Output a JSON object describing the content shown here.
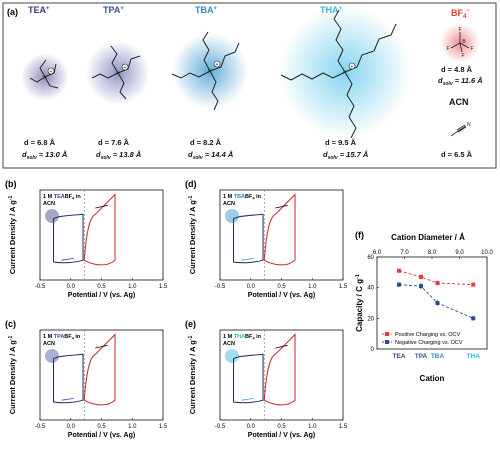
{
  "panel_a": {
    "label": "(a)",
    "cations": [
      {
        "name": "TEA",
        "charge": "+",
        "d": "d = 6.8 Å",
        "dsolv_label": "d",
        "dsolv_sub": "solv",
        "dsolv_value": " = 13.0 Å",
        "color": "#3a3f7a",
        "glow": "#8e86b8"
      },
      {
        "name": "TPA",
        "charge": "+",
        "d": "d = 7.6 Å",
        "dsolv_label": "d",
        "dsolv_sub": "solv",
        "dsolv_value": " = 13.8 Å",
        "color": "#3e4fa0",
        "glow": "#8a90c4"
      },
      {
        "name": "TBA",
        "charge": "+",
        "d": "d = 8.2 Å",
        "dsolv_label": "d",
        "dsolv_sub": "solv",
        "dsolv_value": " = 14.4 Å",
        "color": "#2f8ac4",
        "glow": "#5aa9d6"
      },
      {
        "name": "THA",
        "charge": "+",
        "d": "d = 9.5 Å",
        "dsolv_label": "d",
        "dsolv_sub": "solv",
        "dsolv_value": " = 15.7 Å",
        "color": "#33b4e0",
        "glow": "#7fd3ee"
      }
    ],
    "anion": {
      "name": "BF",
      "sub": "4",
      "charge": "−",
      "d": "d = 4.8 Å",
      "dsolv_label": "d",
      "dsolv_sub": "solv",
      "dsolv_value": " = 11.6 Å",
      "color": "#e8383d",
      "atoms": [
        "F",
        "F",
        "F",
        "F",
        "B"
      ]
    },
    "solvent": {
      "name": "ACN",
      "d": "d = 6.5 Å",
      "atom": "N"
    }
  },
  "cv_axes": {
    "ylabel": "Current Density / A g",
    "ylabel_sup": "-1",
    "xlabel": "Potential / V (vs. Ag)",
    "xticks": [
      "-0.5",
      "0.0",
      "0.5",
      "1.0",
      "1.5"
    ]
  },
  "panels": [
    {
      "label": "(b)",
      "legend1": "1 M ",
      "cation": "TEA",
      "salt": "BF",
      "sub": "4",
      "tail": " in",
      "solvent": "ACN",
      "accent": "#3a3f7a"
    },
    {
      "label": "(d)",
      "legend1": "1 M ",
      "cation": "TBA",
      "salt": "BF",
      "sub": "4",
      "tail": " in",
      "solvent": "ACN",
      "accent": "#2f8ac4"
    },
    {
      "label": "(c)",
      "legend1": "1 M ",
      "cation": "TPA",
      "salt": "BF",
      "sub": "4",
      "tail": " in",
      "solvent": "ACN",
      "accent": "#3e4fa0"
    },
    {
      "label": "(e)",
      "legend1": "1 M ",
      "cation": "THA",
      "salt": "BF",
      "sub": "4",
      "tail": " in",
      "solvent": "ACN",
      "accent": "#33b4e0"
    }
  ],
  "panel_f": {
    "label": "(f)",
    "top_label": "Cation Diameter / Å",
    "ylabel": "Capacity / C g",
    "ylabel_sup": "-1",
    "xlabel": "Cation",
    "legend": [
      "Positive Charging vs. OCV",
      "Negative Charging vs. OCV"
    ]
  },
  "chart_data": {
    "type": "scatter",
    "categories": [
      "TEA",
      "TPA",
      "TBA",
      "THA"
    ],
    "category_colors": [
      "#3a3f7a",
      "#3e4fa0",
      "#2f8ac4",
      "#33b4e0"
    ],
    "x": [
      6.8,
      7.6,
      8.2,
      9.5
    ],
    "top_axis_ticks": [
      "6.0",
      "7.0",
      "8.0",
      "9.0",
      "10.0"
    ],
    "top_axis_range": [
      6.0,
      10.0
    ],
    "yticks": [
      "0",
      "20",
      "40",
      "60"
    ],
    "ylim": [
      0,
      60
    ],
    "series": [
      {
        "name": "Positive Charging vs. OCV",
        "color": "#e8383d",
        "values": [
          51,
          47,
          43,
          42
        ],
        "errors": [
          1,
          1,
          1.5,
          1
        ]
      },
      {
        "name": "Negative Charging vs. OCV",
        "color": "#2e4a9a",
        "values": [
          42,
          41,
          30,
          20
        ],
        "errors": [
          1.5,
          2,
          2,
          1.5
        ]
      }
    ]
  }
}
